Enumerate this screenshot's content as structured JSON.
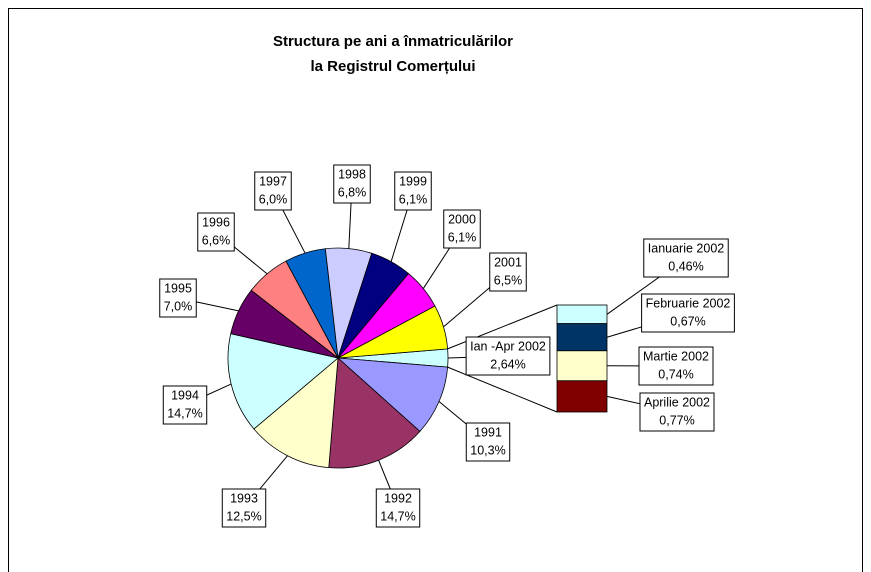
{
  "chart_data": {
    "type": "pie-of-bar",
    "title": [
      "Structura pe ani a înmatriculărilor",
      "la Registrul Comerțului"
    ],
    "categories": [
      "1991",
      "1992",
      "1993",
      "1994",
      "1995",
      "1996",
      "1997",
      "1998",
      "1999",
      "2000",
      "2001",
      "Ian -Apr 2002"
    ],
    "values": [
      10.3,
      14.7,
      12.5,
      14.7,
      7.0,
      6.6,
      6.0,
      6.8,
      6.1,
      6.1,
      6.5,
      2.64
    ],
    "value_labels": [
      "10,3%",
      "14,7%",
      "12,5%",
      "14,7%",
      "7,0%",
      "6,6%",
      "6,0%",
      "6,8%",
      "6,1%",
      "6,1%",
      "6,5%",
      "2,64%"
    ],
    "colors": [
      "#9999ff",
      "#993366",
      "#ffffcc",
      "#ccffff",
      "#660066",
      "#ff8080",
      "#0066cc",
      "#ccccff",
      "#000080",
      "#ff00ff",
      "#ffff00",
      "#ccffff"
    ],
    "secondary": {
      "categories": [
        "Ianuarie 2002",
        "Februarie 2002",
        "Martie 2002",
        "Aprilie 2002"
      ],
      "values": [
        0.46,
        0.67,
        0.74,
        0.77
      ],
      "value_labels": [
        "0,46%",
        "0,67%",
        "0,74%",
        "0,77%"
      ],
      "colors": [
        "#ccffff",
        "#003366",
        "#ffffcc",
        "#800000"
      ]
    }
  }
}
